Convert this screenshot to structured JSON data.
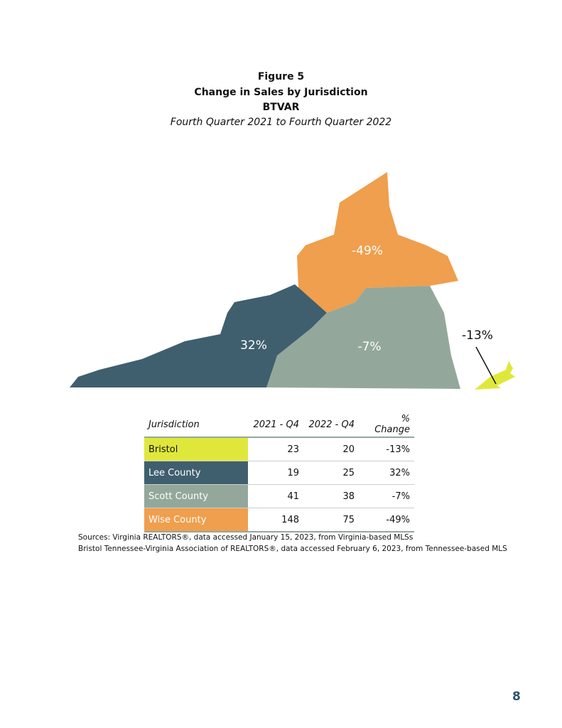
{
  "header": {
    "figure": "Figure 5",
    "title": "Change in Sales by Jurisdiction",
    "subtitle": "BTVAR",
    "period": "Fourth Quarter 2021 to Fourth Quarter 2022"
  },
  "map": {
    "regions": [
      {
        "name": "Wise County",
        "label": "-49%",
        "color": "#ef9f4d"
      },
      {
        "name": "Lee County",
        "label": "32%",
        "color": "#3f5f6e"
      },
      {
        "name": "Scott County",
        "label": "-7%",
        "color": "#93a89a"
      },
      {
        "name": "Bristol",
        "label": "-13%",
        "color": "#dfe83a"
      }
    ]
  },
  "table": {
    "columns": [
      "Jurisdiction",
      "2021 - Q4",
      "2022 - Q4",
      "% Change"
    ],
    "rows": [
      [
        "Bristol",
        23,
        20,
        "-13%"
      ],
      [
        "Lee County",
        19,
        25,
        "32%"
      ],
      [
        "Scott County",
        41,
        38,
        "-7%"
      ],
      [
        "Wise County",
        148,
        75,
        "-49%"
      ]
    ],
    "row_colors": [
      "#dfe83a",
      "#3f5f6e",
      "#93a89a",
      "#ef9f4d"
    ],
    "row_text_colors": [
      "#111111",
      "#ffffff",
      "#ffffff",
      "#ffffff"
    ]
  },
  "sources": [
    "Sources: Virginia REALTORS®, data accessed January 15, 2023, from Virginia-based MLSs",
    "Bristol Tennessee-Virginia Association of REALTORS®, data accessed February 6, 2023, from Tennessee-based MLS"
  ],
  "page_number": "8"
}
